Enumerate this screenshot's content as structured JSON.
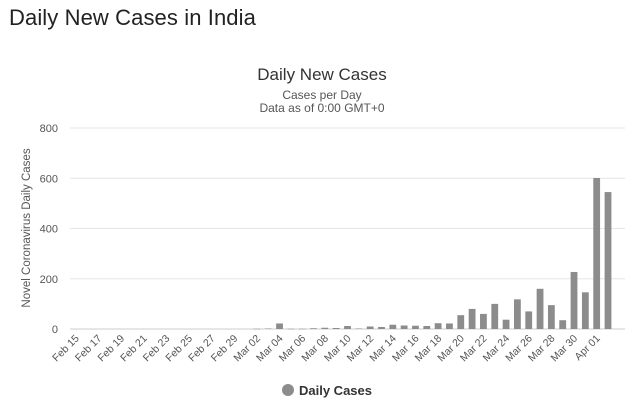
{
  "page": {
    "heading": "Daily New Cases in India"
  },
  "chart_data": {
    "type": "bar",
    "title": "Daily New Cases",
    "subtitle_lines": [
      "Cases per Day",
      "Data as of 0:00 GMT+0"
    ],
    "xlabel": "",
    "ylabel": "Novel Coronavirus Daily Cases",
    "ylim": [
      0,
      800
    ],
    "yticks": [
      0,
      200,
      400,
      600,
      800
    ],
    "grid": true,
    "legend_position": "bottom-center",
    "bar_color": "#8c8c8c",
    "categories": [
      "Feb 15",
      "Feb 16",
      "Feb 17",
      "Feb 18",
      "Feb 19",
      "Feb 20",
      "Feb 21",
      "Feb 22",
      "Feb 23",
      "Feb 24",
      "Feb 25",
      "Feb 26",
      "Feb 27",
      "Feb 28",
      "Feb 29",
      "Mar 01",
      "Mar 02",
      "Mar 03",
      "Mar 04",
      "Mar 05",
      "Mar 06",
      "Mar 07",
      "Mar 08",
      "Mar 09",
      "Mar 10",
      "Mar 11",
      "Mar 12",
      "Mar 13",
      "Mar 14",
      "Mar 15",
      "Mar 16",
      "Mar 17",
      "Mar 18",
      "Mar 19",
      "Mar 20",
      "Mar 21",
      "Mar 22",
      "Mar 23",
      "Mar 24",
      "Mar 25",
      "Mar 26",
      "Mar 27",
      "Mar 28",
      "Mar 29",
      "Mar 30",
      "Mar 31",
      "Apr 01",
      "Apr 02",
      "Apr 03"
    ],
    "x_tick_labels": [
      "Feb 15",
      "Feb 17",
      "Feb 19",
      "Feb 21",
      "Feb 23",
      "Feb 25",
      "Feb 27",
      "Feb 29",
      "Mar 02",
      "Mar 04",
      "Mar 06",
      "Mar 08",
      "Mar 10",
      "Mar 12",
      "Mar 14",
      "Mar 16",
      "Mar 18",
      "Mar 20",
      "Mar 22",
      "Mar 24",
      "Mar 26",
      "Mar 28",
      "Mar 30",
      "Apr 01"
    ],
    "series": [
      {
        "name": "Daily Cases",
        "values": [
          0,
          0,
          0,
          0,
          0,
          0,
          0,
          0,
          0,
          0,
          0,
          0,
          0,
          0,
          0,
          0,
          1,
          2,
          22,
          1,
          1,
          3,
          5,
          4,
          12,
          2,
          10,
          8,
          17,
          14,
          13,
          12,
          23,
          22,
          55,
          80,
          60,
          100,
          37,
          118,
          70,
          160,
          95,
          35,
          227,
          146,
          601,
          545,
          0
        ]
      }
    ]
  }
}
